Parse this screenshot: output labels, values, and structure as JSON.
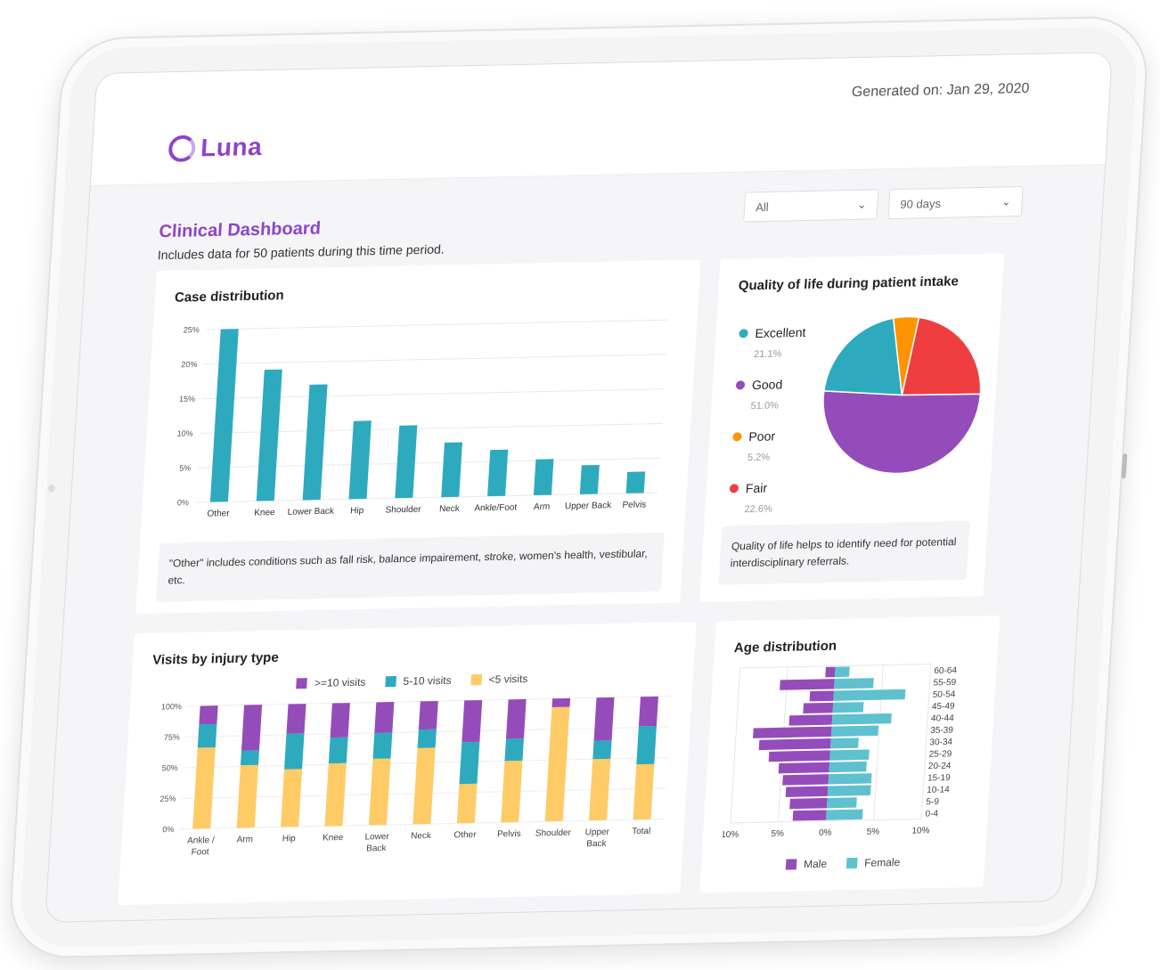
{
  "header": {
    "generated_on": "Generated on: Jan 29, 2020",
    "logo_text": "Luna"
  },
  "page": {
    "title": "Clinical Dashboard",
    "subtitle": "Includes data for 50 patients during this time period."
  },
  "filters": [
    {
      "value": "All",
      "icon": "chevron-down-icon"
    },
    {
      "value": "90 days",
      "icon": "chevron-down-icon"
    }
  ],
  "colors": {
    "brand": "#8e44c9",
    "teal": "#2eaabf",
    "purple": "#954cbb",
    "light_teal": "#5fc1cf",
    "yellow": "#fecb66",
    "orange": "#fd9400",
    "red": "#ef3e3f"
  },
  "chart_data": [
    {
      "id": "case_distribution",
      "type": "bar",
      "title": "Case distribution",
      "categories": [
        "Other",
        "Knee",
        "Lower Back",
        "Hip",
        "Shoulder",
        "Neck",
        "Ankle/Foot",
        "Arm",
        "Upper Back",
        "Pelvis"
      ],
      "values": [
        25,
        19,
        16.7,
        11.3,
        10.5,
        7.9,
        6.7,
        5.2,
        4.2,
        3.1
      ],
      "ylim": [
        0,
        25
      ],
      "yticks": [
        "0%",
        "5%",
        "10%",
        "15%",
        "20%",
        "25%"
      ],
      "grid": true,
      "note": "\"Other\" includes conditions such as fall risk, balance impairement, stroke, women's health, vestibular, etc."
    },
    {
      "id": "quality_of_life",
      "type": "pie",
      "title": "Quality of life during patient intake",
      "slices": [
        {
          "label": "Excellent",
          "value": 21.1,
          "display": "21.1%",
          "color": "#2eaabf"
        },
        {
          "label": "Good",
          "value": 51.0,
          "display": "51.0%",
          "color": "#954cbb"
        },
        {
          "label": "Poor",
          "value": 5.2,
          "display": "5.2%",
          "color": "#fd9400"
        },
        {
          "label": "Fair",
          "value": 22.6,
          "display": "22.6%",
          "color": "#ef3e3f"
        }
      ],
      "legend": "left",
      "note": "Quality of life helps to identify need for potential interdisciplinary referrals."
    },
    {
      "id": "visits_by_injury",
      "type": "bar",
      "stacked": true,
      "title": "Visits by injury type",
      "categories": [
        "Ankle / Foot",
        "Arm",
        "Hip",
        "Knee",
        "Lower Back",
        "Neck",
        "Other",
        "Pelvis",
        "Shoulder",
        "Upper Back",
        "Total"
      ],
      "series": [
        {
          "name": "<5 visits",
          "color": "#fecb66",
          "values": [
            66,
            51,
            47,
            51,
            54,
            62,
            32,
            50,
            93,
            50,
            45
          ]
        },
        {
          "name": "5-10 visits",
          "color": "#2eaabf",
          "values": [
            19,
            12,
            29,
            21,
            21,
            15,
            34,
            18,
            0,
            15,
            31
          ]
        },
        {
          "name": ">=10 visits",
          "color": "#954cbb",
          "values": [
            15,
            37,
            24,
            28,
            25,
            23,
            34,
            32,
            7,
            35,
            24
          ]
        }
      ],
      "legend_order": [
        ">=10 visits",
        "5-10 visits",
        "<5 visits"
      ],
      "legend": "top",
      "ylim": [
        0,
        100
      ],
      "yticks": [
        "0%",
        "25%",
        "50%",
        "75%",
        "100%"
      ],
      "grid": true
    },
    {
      "id": "age_distribution",
      "type": "bar",
      "orientation": "horizontal",
      "title": "Age distribution",
      "categories": [
        "60-64",
        "55-59",
        "50-54",
        "45-49",
        "40-44",
        "35-39",
        "30-34",
        "25-29",
        "20-24",
        "15-19",
        "10-14",
        "5-9",
        "0-4"
      ],
      "series": [
        {
          "name": "Male",
          "color": "#954cbb",
          "values": [
            1.0,
            5.7,
            2.5,
            3.1,
            4.5,
            8.2,
            7.5,
            6.4,
            5.3,
            4.8,
            4.4,
            3.9,
            3.5
          ]
        },
        {
          "name": "Female",
          "color": "#5fc1cf",
          "values": [
            1.5,
            4.1,
            7.5,
            3.2,
            6.2,
            4.9,
            2.9,
            4.1,
            3.9,
            4.5,
            4.5,
            3.1,
            3.8
          ]
        }
      ],
      "xlim": [
        -10,
        10
      ],
      "xticks": [
        "10%",
        "5%",
        "0%",
        "5%",
        "10%"
      ],
      "legend": "bottom"
    }
  ]
}
